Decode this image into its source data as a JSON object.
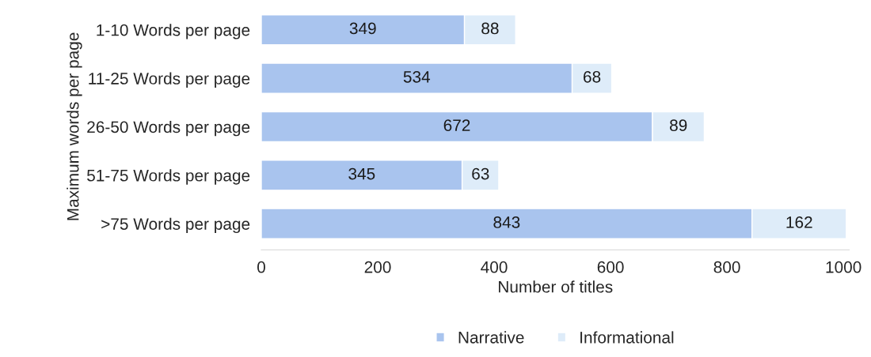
{
  "chart_data": {
    "type": "bar",
    "orientation": "horizontal",
    "stacked": true,
    "categories": [
      "1-10 Words per page",
      "11-25 Words per page",
      "26-50 Words per page",
      "51-75 Words per page",
      ">75 Words per page"
    ],
    "series": [
      {
        "name": "Narrative",
        "color": "#a9c4ee",
        "values": [
          349,
          534,
          672,
          345,
          843
        ]
      },
      {
        "name": "Informational",
        "color": "#deecf9",
        "values": [
          88,
          68,
          89,
          63,
          162
        ]
      }
    ],
    "xlabel": "Number of titles",
    "ylabel": "Maximum words per page",
    "xlim": [
      0,
      1010
    ],
    "xticks": [
      0,
      200,
      400,
      600,
      800,
      1000
    ],
    "data_labels": true,
    "grid": false,
    "legend": "bottom"
  }
}
